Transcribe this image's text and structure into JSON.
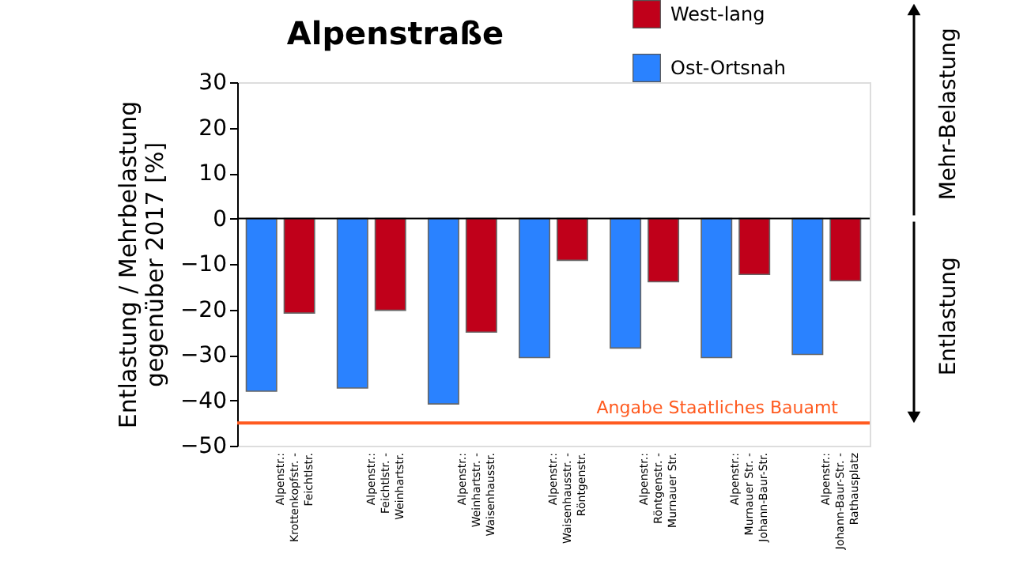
{
  "chart_data": {
    "type": "bar",
    "title": "Alpenstraße",
    "ylabel": "Entlastung / Mehrbelastung\ngegenüber 2017 [%]",
    "categories": [
      "Alpenstr.:\nKrottenkopfstr. -\nFeichtlstr.",
      "Alpenstr.:\nFeichtlstr. -\nWeinhartstr.",
      "Alpenstr.:\nWeinhartstr. -\nWaisenhausstr.",
      "Alpenstr.:\nWaisenhausstr. -\nRöntgenstr.",
      "Alpenstr.:\nRöntgenstr. -\nMurnauer Str.",
      "Alpenstr.:\nMurnauer Str. -\nJohann-Baur-Str.",
      "Alpenstr.:\nJohann-Baur-Str. -\nRathausplatz"
    ],
    "series": [
      {
        "name": "Ost-Ortsnah",
        "color": "#2a82ff",
        "values": [
          -38,
          -37.3,
          -40.8,
          -30.6,
          -28.5,
          -30.6,
          -29.9
        ]
      },
      {
        "name": "West-lang",
        "color": "#c0001a",
        "values": [
          -20.8,
          -20.2,
          -25,
          -9.2,
          -13.9,
          -12.3,
          -13.7
        ]
      }
    ],
    "ylim": [
      -50,
      30
    ],
    "yticks": [
      -50,
      -40,
      -30,
      -20,
      -10,
      0,
      10,
      20,
      30
    ],
    "ref_lines": [
      {
        "axis": "y",
        "value": 0,
        "color": "#000000"
      },
      {
        "axis": "y",
        "value": -45,
        "label": "Angabe Staatliches Bauamt",
        "color": "#ff5a1f"
      }
    ],
    "annotations": [
      "Mehr-Belastung",
      "Entlastung"
    ],
    "legend": "top right",
    "grid": false
  }
}
